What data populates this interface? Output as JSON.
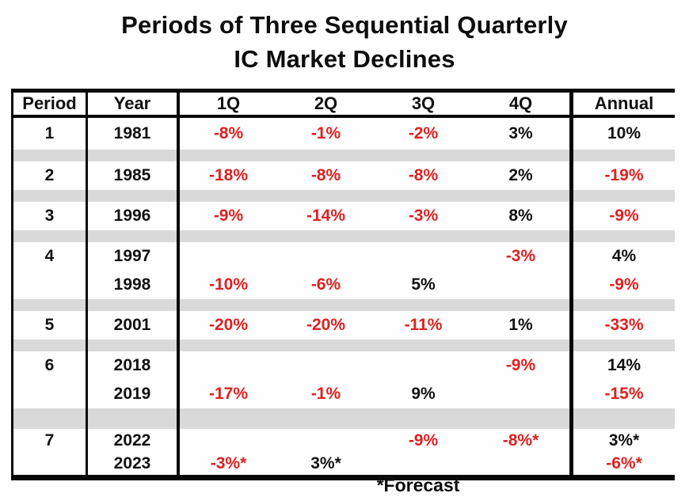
{
  "title": {
    "line1": "Periods of Three Sequential Quarterly",
    "line2": "IC Market Declines"
  },
  "footnote": "*Forecast",
  "colors": {
    "negative": "#dd2222",
    "positive": "#111111",
    "separator_fill": "#d9d9d9"
  },
  "chart_data": {
    "type": "table",
    "title": "Periods of Three Sequential Quarterly IC Market Declines",
    "columns": [
      "Period",
      "Year",
      "1Q",
      "2Q",
      "3Q",
      "4Q",
      "Annual"
    ],
    "rows": [
      [
        "1",
        "1981",
        "-8%",
        "-1%",
        "-2%",
        "3%",
        "10%"
      ],
      [
        "2",
        "1985",
        "-18%",
        "-8%",
        "-8%",
        "2%",
        "-19%"
      ],
      [
        "3",
        "1996",
        "-9%",
        "-14%",
        "-3%",
        "8%",
        "-9%"
      ],
      [
        "4",
        "1997",
        "",
        "",
        "",
        "-3%",
        "4%"
      ],
      [
        "",
        "1998",
        "-10%",
        "-6%",
        "5%",
        "",
        "-9%"
      ],
      [
        "5",
        "2001",
        "-20%",
        "-20%",
        "-11%",
        "1%",
        "-33%"
      ],
      [
        "6",
        "2018",
        "",
        "",
        "",
        "-9%",
        "14%"
      ],
      [
        "",
        "2019",
        "-17%",
        "-1%",
        "9%",
        "",
        "-15%"
      ],
      [
        "7",
        "2022",
        "",
        "",
        "-9%",
        "-8%*",
        "3%*"
      ],
      [
        "",
        "2023",
        "-3%*",
        "3%*",
        "",
        "",
        "-6%*"
      ]
    ],
    "footnote": "*Forecast",
    "value_color_rule": "negative values rendered in red, non-negative in black",
    "layout_hints": {
      "grouped_periods": "rows with empty Period cell belong to the period above",
      "separator_bands": "light gray bands between period groups",
      "grid": "vertical rules after Period, Year and 4Q columns only"
    }
  }
}
